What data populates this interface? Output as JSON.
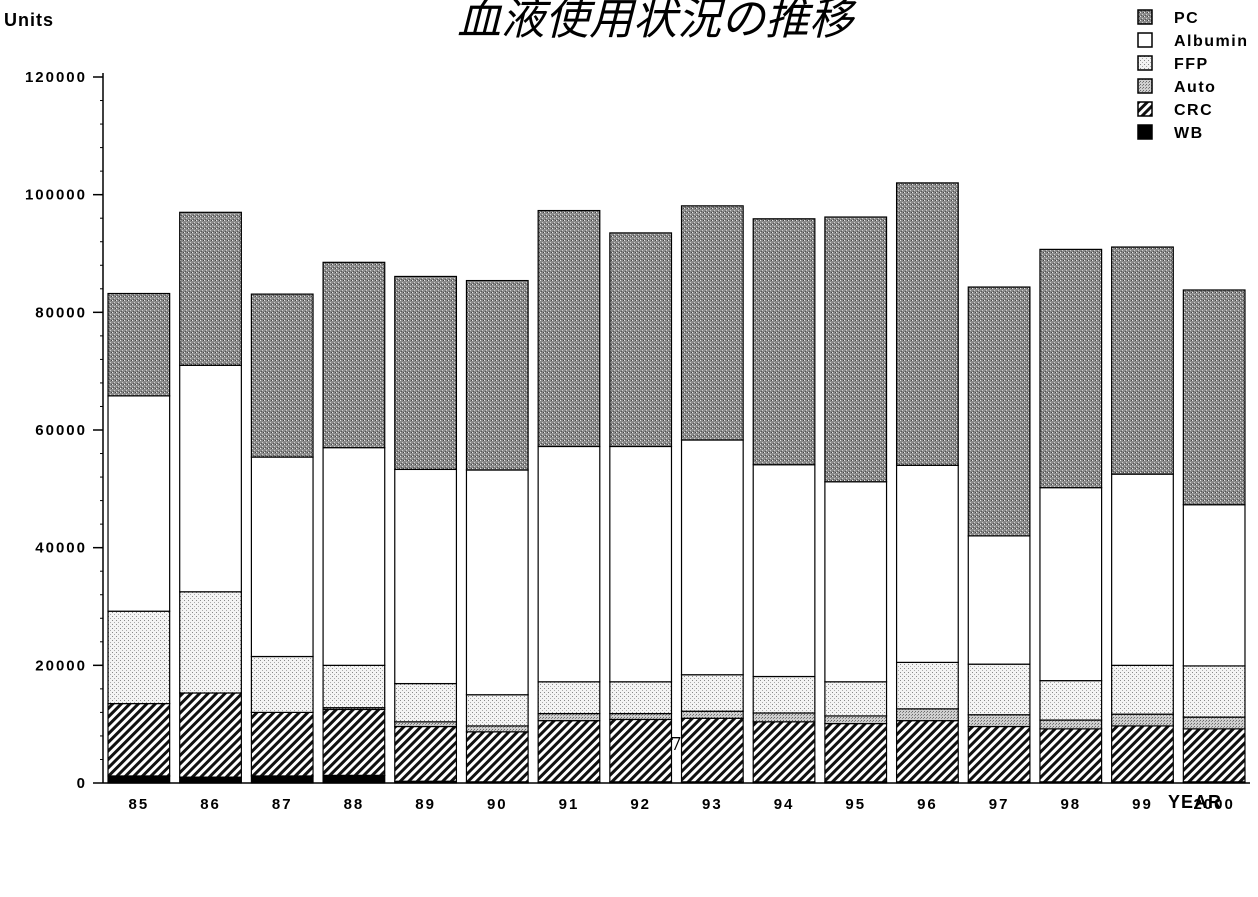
{
  "page_number": "－ 277 －",
  "chart_data": {
    "type": "bar",
    "stacked": true,
    "title": "血液使用状況の推移",
    "ylabel": "Units",
    "xlabel": "YEAR",
    "ylim": [
      0,
      120000
    ],
    "yticks": [
      0,
      20000,
      40000,
      60000,
      80000,
      100000,
      120000
    ],
    "ytick_labels": [
      "0",
      "20000",
      "40000",
      "60000",
      "80000",
      "100000",
      "120000"
    ],
    "legend_position": "top-right",
    "categories": [
      "85",
      "86",
      "87",
      "88",
      "89",
      "90",
      "91",
      "92",
      "93",
      "94",
      "95",
      "96",
      "97",
      "98",
      "99",
      "2000"
    ],
    "series": [
      {
        "name": "WB",
        "pattern": "solid-black",
        "values": [
          1200,
          1000,
          1200,
          1300,
          300,
          200,
          200,
          200,
          200,
          200,
          200,
          200,
          200,
          200,
          200,
          200
        ]
      },
      {
        "name": "CRC",
        "pattern": "diagonal-hatch",
        "values": [
          12300,
          14300,
          10800,
          11200,
          9300,
          8500,
          10400,
          10600,
          10800,
          10200,
          9900,
          10400,
          9400,
          9000,
          9500,
          9000
        ]
      },
      {
        "name": "Auto",
        "pattern": "medium-dots",
        "values": [
          0,
          0,
          0,
          300,
          800,
          1000,
          1200,
          1000,
          1200,
          1500,
          1300,
          2000,
          2000,
          1500,
          2000,
          2000
        ]
      },
      {
        "name": "FFP",
        "pattern": "light-dots",
        "values": [
          15700,
          17200,
          9500,
          7200,
          6500,
          5300,
          5400,
          5400,
          6200,
          6200,
          5800,
          7900,
          8600,
          6700,
          8300,
          8700
        ]
      },
      {
        "name": "Albumin",
        "pattern": "white",
        "values": [
          36600,
          38500,
          33900,
          37000,
          36400,
          38200,
          40000,
          40000,
          39900,
          36000,
          34000,
          33500,
          21800,
          32800,
          32500,
          27400
        ]
      },
      {
        "name": "PC",
        "pattern": "dense-dots",
        "values": [
          17400,
          26000,
          27700,
          31500,
          32800,
          32200,
          40100,
          36300,
          39800,
          41800,
          45000,
          48000,
          42300,
          40500,
          38600,
          36500
        ]
      }
    ]
  }
}
